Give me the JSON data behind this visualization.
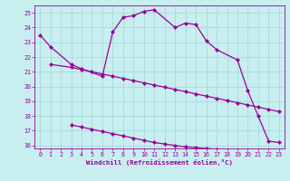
{
  "xlabel": "Windchill (Refroidissement éolien,°C)",
  "background_color": "#c8eef0",
  "grid_color": "#aadddd",
  "line_color": "#990099",
  "ylim": [
    15.8,
    25.5
  ],
  "xlim": [
    -0.5,
    23.5
  ],
  "yticks": [
    16,
    17,
    18,
    19,
    20,
    21,
    22,
    23,
    24,
    25
  ],
  "xticks": [
    0,
    1,
    2,
    3,
    4,
    5,
    6,
    7,
    8,
    9,
    10,
    11,
    12,
    13,
    14,
    15,
    16,
    17,
    18,
    19,
    20,
    21,
    22,
    23
  ],
  "x_main": [
    0,
    1,
    3,
    4,
    6,
    7,
    8,
    9,
    10,
    11,
    13,
    14,
    15,
    16,
    17,
    19,
    20,
    21,
    22,
    23
  ],
  "y_main": [
    23.5,
    22.7,
    21.5,
    21.2,
    20.7,
    23.7,
    24.7,
    24.8,
    25.1,
    25.2,
    24.0,
    24.3,
    24.2,
    23.1,
    22.5,
    21.8,
    19.7,
    18.0,
    16.3,
    16.2
  ],
  "x_upper": [
    1,
    3,
    4,
    5,
    6,
    7,
    8,
    9,
    10,
    11,
    12,
    13,
    14,
    15,
    16,
    17,
    18,
    19,
    20,
    21,
    22,
    23
  ],
  "y_upper": [
    21.5,
    21.3,
    21.15,
    21.0,
    20.85,
    20.7,
    20.55,
    20.4,
    20.25,
    20.1,
    19.95,
    19.8,
    19.65,
    19.5,
    19.35,
    19.2,
    19.05,
    18.9,
    18.75,
    18.6,
    18.45,
    18.3
  ],
  "x_lower": [
    3,
    4,
    5,
    6,
    7,
    8,
    9,
    10,
    11,
    12,
    13,
    14,
    15,
    16,
    17,
    18,
    19,
    20,
    21,
    22,
    23
  ],
  "y_lower": [
    17.4,
    17.25,
    17.1,
    16.95,
    16.8,
    16.65,
    16.5,
    16.35,
    16.2,
    16.1,
    16.0,
    15.9,
    15.85,
    15.8,
    15.75,
    15.7,
    15.65,
    15.6,
    15.55,
    15.5,
    15.45
  ]
}
